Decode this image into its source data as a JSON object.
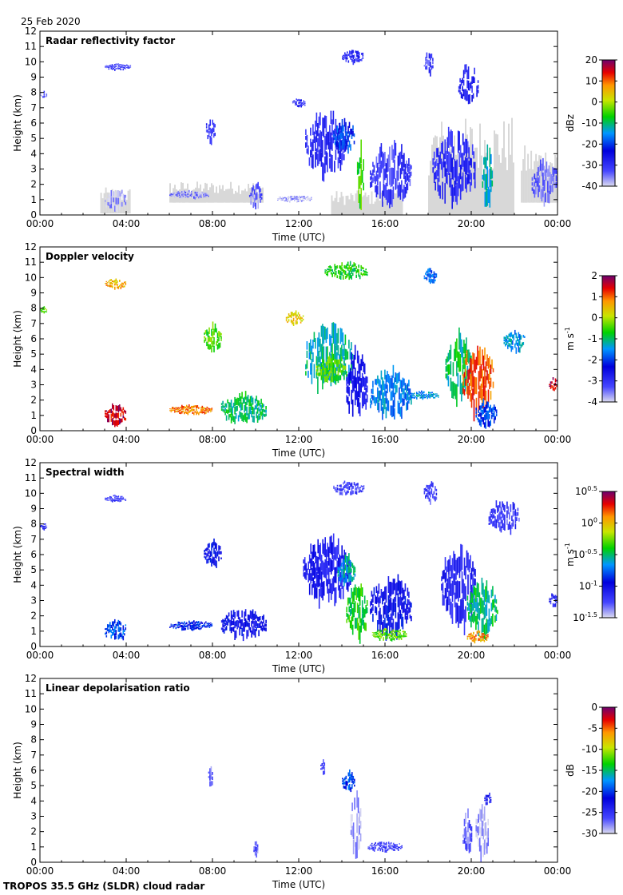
{
  "header": {
    "date": "25 Feb 2020"
  },
  "footer": {
    "instrument": "TROPOS 35.5 GHz (SLDR) cloud radar"
  },
  "colors": {
    "missing": "#d8d8d8",
    "axis": "#000000"
  },
  "chart_data": [
    {
      "type": "heatmap",
      "title": "Radar reflectivity factor",
      "xlabel": "Time (UTC)",
      "ylabel": "Height (km)",
      "xlim": [
        0,
        24
      ],
      "ylim": [
        0,
        12
      ],
      "xticks": [
        "00:00",
        "04:00",
        "08:00",
        "12:00",
        "16:00",
        "20:00",
        "00:00"
      ],
      "yticks": [
        "0",
        "1",
        "2",
        "3",
        "4",
        "5",
        "6",
        "7",
        "8",
        "9",
        "10",
        "11",
        "12"
      ],
      "colorbar": {
        "label": "dBz",
        "min": -40,
        "max": 20,
        "ticks": [
          "20",
          "10",
          "0",
          "-10",
          "-20",
          "-30",
          "-40"
        ]
      },
      "features": [
        {
          "t0": 0.0,
          "t1": 0.3,
          "h0": 7.6,
          "h1": 8.1,
          "v": -34
        },
        {
          "t0": 3.0,
          "t1": 4.2,
          "h0": 9.4,
          "h1": 9.9,
          "v": -32
        },
        {
          "t0": 3.0,
          "t1": 4.0,
          "h0": 0.1,
          "h1": 1.7,
          "v": -38
        },
        {
          "t0": 6.0,
          "t1": 7.8,
          "h0": 1.0,
          "h1": 1.6,
          "v": -36
        },
        {
          "t0": 7.7,
          "t1": 8.1,
          "h0": 4.5,
          "h1": 6.6,
          "v": -31
        },
        {
          "t0": 9.7,
          "t1": 10.3,
          "h0": 0.2,
          "h1": 2.2,
          "v": -34
        },
        {
          "t0": 11.0,
          "t1": 12.6,
          "h0": 0.8,
          "h1": 1.3,
          "v": -38
        },
        {
          "t0": 11.7,
          "t1": 12.3,
          "h0": 7.0,
          "h1": 7.6,
          "v": -30
        },
        {
          "t0": 12.3,
          "t1": 14.2,
          "h0": 2.2,
          "h1": 6.8,
          "v": -29
        },
        {
          "t0": 13.6,
          "t1": 14.6,
          "h0": 4.0,
          "h1": 6.2,
          "v": -20
        },
        {
          "t0": 14.0,
          "t1": 15.0,
          "h0": 9.8,
          "h1": 10.8,
          "v": -30
        },
        {
          "t0": 14.7,
          "t1": 15.0,
          "h0": 0.0,
          "h1": 4.8,
          "v": -6
        },
        {
          "t0": 15.3,
          "t1": 17.2,
          "h0": 0.3,
          "h1": 4.8,
          "v": -31
        },
        {
          "t0": 17.8,
          "t1": 18.2,
          "h0": 9.0,
          "h1": 10.8,
          "v": -31
        },
        {
          "t0": 18.2,
          "t1": 20.2,
          "h0": 0.3,
          "h1": 5.6,
          "v": -30
        },
        {
          "t0": 19.4,
          "t1": 20.3,
          "h0": 7.0,
          "h1": 9.8,
          "v": -28
        },
        {
          "t0": 20.5,
          "t1": 21.0,
          "h0": 0.0,
          "h1": 4.6,
          "v": -12
        },
        {
          "t0": 22.8,
          "t1": 24.0,
          "h0": 0.6,
          "h1": 3.6,
          "v": -34
        }
      ],
      "missing": [
        {
          "t0": 2.8,
          "t1": 4.2,
          "h0": 0.1,
          "h1": 1.8
        },
        {
          "t0": 6.0,
          "t1": 10.3,
          "h0": 0.8,
          "h1": 2.2
        },
        {
          "t0": 13.5,
          "t1": 16.8,
          "h0": 0.0,
          "h1": 1.6
        },
        {
          "t0": 18.0,
          "t1": 22.0,
          "h0": 0.0,
          "h1": 6.4
        },
        {
          "t0": 22.3,
          "t1": 24.0,
          "h0": 0.8,
          "h1": 4.6
        }
      ]
    },
    {
      "type": "heatmap",
      "title": "Doppler velocity",
      "xlabel": "Time (UTC)",
      "ylabel": "Height (km)",
      "xlim": [
        0,
        24
      ],
      "ylim": [
        0,
        12
      ],
      "xticks": [
        "00:00",
        "04:00",
        "08:00",
        "12:00",
        "16:00",
        "20:00",
        "00:00"
      ],
      "yticks": [
        "0",
        "1",
        "2",
        "3",
        "4",
        "5",
        "6",
        "7",
        "8",
        "9",
        "10",
        "11",
        "12"
      ],
      "colorbar": {
        "label": "m s-1",
        "min": -4,
        "max": 2,
        "ticks": [
          "2",
          "1",
          "0",
          "-1",
          "-2",
          "-3",
          "-4"
        ]
      },
      "features": [
        {
          "t0": 0.0,
          "t1": 0.3,
          "h0": 7.6,
          "h1": 8.1,
          "v": -0.4
        },
        {
          "t0": 3.0,
          "t1": 4.0,
          "h0": 0.2,
          "h1": 1.8,
          "v": 1.6
        },
        {
          "t0": 3.0,
          "t1": 4.0,
          "h0": 9.2,
          "h1": 9.9,
          "v": 0.6
        },
        {
          "t0": 6.0,
          "t1": 8.0,
          "h0": 1.0,
          "h1": 1.7,
          "v": 0.9
        },
        {
          "t0": 7.6,
          "t1": 8.4,
          "h0": 5.0,
          "h1": 7.0,
          "v": -0.4
        },
        {
          "t0": 8.4,
          "t1": 10.5,
          "h0": 0.3,
          "h1": 2.5,
          "v": -1.0
        },
        {
          "t0": 11.4,
          "t1": 12.2,
          "h0": 6.8,
          "h1": 7.8,
          "v": 0.4
        },
        {
          "t0": 12.3,
          "t1": 14.5,
          "h0": 2.2,
          "h1": 7.0,
          "v": -1.2
        },
        {
          "t0": 12.8,
          "t1": 14.2,
          "h0": 3.0,
          "h1": 5.0,
          "v": -0.5
        },
        {
          "t0": 13.2,
          "t1": 15.2,
          "h0": 9.8,
          "h1": 11.0,
          "v": -0.7
        },
        {
          "t0": 14.2,
          "t1": 15.2,
          "h0": 0.3,
          "h1": 5.5,
          "v": -2.6
        },
        {
          "t0": 15.3,
          "t1": 17.2,
          "h0": 0.5,
          "h1": 4.0,
          "v": -1.6
        },
        {
          "t0": 17.0,
          "t1": 18.5,
          "h0": 2.0,
          "h1": 2.6,
          "v": -1.5
        },
        {
          "t0": 17.8,
          "t1": 18.4,
          "h0": 9.5,
          "h1": 10.6,
          "v": -1.8
        },
        {
          "t0": 18.8,
          "t1": 20.0,
          "h0": 1.5,
          "h1": 6.5,
          "v": -1.0
        },
        {
          "t0": 19.6,
          "t1": 21.0,
          "h0": 0.8,
          "h1": 5.8,
          "v": 1.1
        },
        {
          "t0": 20.2,
          "t1": 21.2,
          "h0": 0.0,
          "h1": 2.0,
          "v": -2.0
        },
        {
          "t0": 21.5,
          "t1": 22.5,
          "h0": 5.0,
          "h1": 6.6,
          "v": -1.5
        },
        {
          "t0": 23.6,
          "t1": 24.0,
          "h0": 2.5,
          "h1": 3.5,
          "v": 1.6
        }
      ],
      "missing": []
    },
    {
      "type": "heatmap",
      "title": "Spectral width",
      "xlabel": "Time (UTC)",
      "ylabel": "Height (km)",
      "xlim": [
        0,
        24
      ],
      "ylim": [
        0,
        12
      ],
      "xticks": [
        "00:00",
        "04:00",
        "08:00",
        "12:00",
        "16:00",
        "20:00",
        "00:00"
      ],
      "yticks": [
        "0",
        "1",
        "2",
        "3",
        "4",
        "5",
        "6",
        "7",
        "8",
        "9",
        "10",
        "11",
        "12"
      ],
      "colorbar": {
        "label": "m s-1",
        "min": -1.5,
        "max": 0.5,
        "ticks": [
          "100.5",
          "100",
          "10-0.5",
          "10-1",
          "10-1.5"
        ]
      },
      "features": [
        {
          "t0": 0.0,
          "t1": 0.3,
          "h0": 7.6,
          "h1": 8.1,
          "v": -1.1
        },
        {
          "t0": 3.0,
          "t1": 4.0,
          "h0": 0.2,
          "h1": 1.8,
          "v": -0.8
        },
        {
          "t0": 3.0,
          "t1": 4.0,
          "h0": 9.4,
          "h1": 9.9,
          "v": -1.2
        },
        {
          "t0": 6.0,
          "t1": 8.0,
          "h0": 1.0,
          "h1": 1.7,
          "v": -0.9
        },
        {
          "t0": 7.6,
          "t1": 8.4,
          "h0": 5.0,
          "h1": 7.0,
          "v": -1.0
        },
        {
          "t0": 8.4,
          "t1": 10.5,
          "h0": 0.3,
          "h1": 2.5,
          "v": -1.0
        },
        {
          "t0": 12.2,
          "t1": 14.4,
          "h0": 2.4,
          "h1": 7.2,
          "v": -1.1
        },
        {
          "t0": 13.8,
          "t1": 14.6,
          "h0": 3.8,
          "h1": 6.0,
          "v": -0.6
        },
        {
          "t0": 13.6,
          "t1": 15.0,
          "h0": 9.8,
          "h1": 10.8,
          "v": -1.2
        },
        {
          "t0": 14.2,
          "t1": 15.2,
          "h0": 0.2,
          "h1": 4.2,
          "v": -0.4
        },
        {
          "t0": 15.3,
          "t1": 17.2,
          "h0": 0.4,
          "h1": 4.6,
          "v": -1.0
        },
        {
          "t0": 15.4,
          "t1": 17.0,
          "h0": 0.3,
          "h1": 1.2,
          "v": -0.3
        },
        {
          "t0": 17.8,
          "t1": 18.4,
          "h0": 9.2,
          "h1": 10.8,
          "v": -1.2
        },
        {
          "t0": 18.6,
          "t1": 20.2,
          "h0": 1.0,
          "h1": 6.6,
          "v": -1.1
        },
        {
          "t0": 19.8,
          "t1": 21.2,
          "h0": 0.3,
          "h1": 4.4,
          "v": -0.5
        },
        {
          "t0": 19.8,
          "t1": 20.8,
          "h0": 0.2,
          "h1": 1.0,
          "v": 0.1
        },
        {
          "t0": 20.8,
          "t1": 22.2,
          "h0": 7.2,
          "h1": 9.6,
          "v": -1.2
        },
        {
          "t0": 23.6,
          "t1": 24.0,
          "h0": 2.5,
          "h1": 3.5,
          "v": -1.1
        }
      ],
      "missing": []
    },
    {
      "type": "heatmap",
      "title": "Linear depolarisation ratio",
      "xlabel": "Time (UTC)",
      "ylabel": "Height (km)",
      "xlim": [
        0,
        24
      ],
      "ylim": [
        0,
        12
      ],
      "xticks": [
        "00:00",
        "04:00",
        "08:00",
        "12:00",
        "16:00",
        "20:00",
        "00:00"
      ],
      "yticks": [
        "0",
        "1",
        "2",
        "3",
        "4",
        "5",
        "6",
        "7",
        "8",
        "9",
        "10",
        "11",
        "12"
      ],
      "colorbar": {
        "label": "dB",
        "min": -30,
        "max": 0,
        "ticks": [
          "0",
          "-5",
          "-10",
          "-15",
          "-20",
          "-25",
          "-30"
        ]
      },
      "features": [
        {
          "t0": 7.8,
          "t1": 8.0,
          "h0": 4.8,
          "h1": 6.4,
          "v": -27
        },
        {
          "t0": 9.9,
          "t1": 10.1,
          "h0": 0.2,
          "h1": 1.4,
          "v": -27
        },
        {
          "t0": 13.0,
          "t1": 13.2,
          "h0": 5.6,
          "h1": 6.8,
          "v": -26
        },
        {
          "t0": 14.0,
          "t1": 14.6,
          "h0": 4.4,
          "h1": 6.0,
          "v": -20
        },
        {
          "t0": 14.4,
          "t1": 14.9,
          "h0": 0.0,
          "h1": 4.6,
          "v": -29
        },
        {
          "t0": 15.2,
          "t1": 16.8,
          "h0": 0.6,
          "h1": 1.4,
          "v": -26
        },
        {
          "t0": 19.6,
          "t1": 20.0,
          "h0": 0.2,
          "h1": 3.5,
          "v": -27
        },
        {
          "t0": 20.2,
          "t1": 20.8,
          "h0": 0.0,
          "h1": 3.8,
          "v": -29
        },
        {
          "t0": 20.6,
          "t1": 20.9,
          "h0": 3.6,
          "h1": 4.6,
          "v": -24
        }
      ],
      "missing": []
    }
  ]
}
